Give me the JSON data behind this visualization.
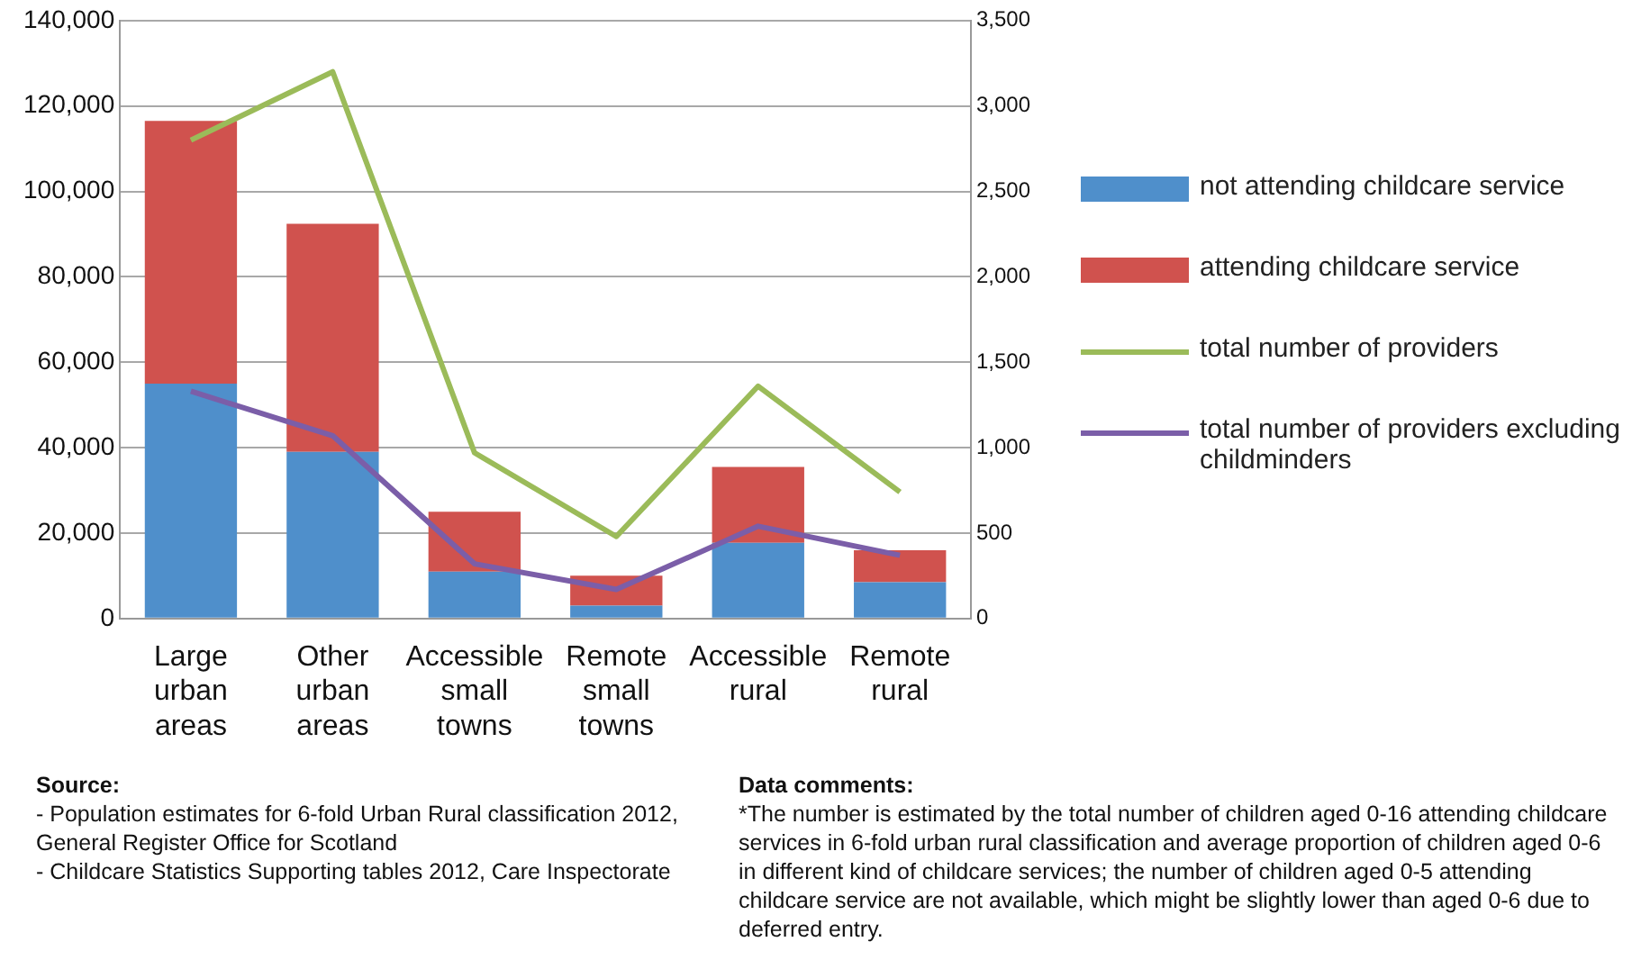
{
  "chart_data": {
    "type": "bar",
    "stacked": true,
    "categories": [
      "Large urban areas",
      "Other urban areas",
      "Accessible small towns",
      "Remote small towns",
      "Accessible rural",
      "Remote rural"
    ],
    "series": [
      {
        "name": "not attending childcare service",
        "color": "#4f8fcb",
        "values": [
          55000,
          39000,
          11000,
          3000,
          17700,
          8500
        ]
      },
      {
        "name": "attending childcare service",
        "color": "#d0524e",
        "values": [
          61500,
          53400,
          14000,
          7000,
          17800,
          7500
        ]
      },
      {
        "name": "total number of providers",
        "type": "line",
        "axis": "y2",
        "color": "#9bbb59",
        "values": [
          2800,
          3200,
          970,
          480,
          1360,
          740
        ]
      },
      {
        "name": "total number of providers excluding childminders",
        "type": "line",
        "axis": "y2",
        "color": "#7b5ea8",
        "values": [
          1330,
          1070,
          320,
          170,
          540,
          370
        ]
      }
    ],
    "ylim": [
      0,
      140000
    ],
    "yticks": [
      {
        "value": 0,
        "label": "0"
      },
      {
        "value": 20000,
        "label": "20,000"
      },
      {
        "value": 40000,
        "label": "40,000"
      },
      {
        "value": 60000,
        "label": "60,000"
      },
      {
        "value": 80000,
        "label": "80,000"
      },
      {
        "value": 100000,
        "label": "100,000"
      },
      {
        "value": 120000,
        "label": "120,000"
      },
      {
        "value": 140000,
        "label": "140,000"
      }
    ],
    "y2lim": [
      0,
      3500
    ],
    "y2ticks": [
      0,
      500,
      {
        "value": 1000,
        "label": "1,000"
      },
      {
        "value": 1500,
        "label": "1,500"
      },
      {
        "value": 2000,
        "label": "2,000"
      },
      {
        "value": 2500,
        "label": "2,500"
      },
      {
        "value": 3000,
        "label": "3,000"
      },
      {
        "value": 3500,
        "label": "3,500"
      }
    ],
    "grid": "y",
    "legend": "right",
    "marker": "none",
    "line_style": "solid",
    "annotations": [
      "Source:",
      "- Population estimates for 6-fold Urban Rural classification 2012, General  Register Office for Scotland",
      "- Childcare Statistics Supporting tables 2012, Care Inspectorate",
      "Data comments:",
      "*The number is estimated by the total number of children aged 0-16 attending childcare services in 6-fold urban rural classification and average proportion of children aged 0-6 in different kind of childcare services;  the number of children aged 0-5 attending childcare service are not available, which might be slightly lower than aged 0-6 due to deferred entry."
    ]
  }
}
